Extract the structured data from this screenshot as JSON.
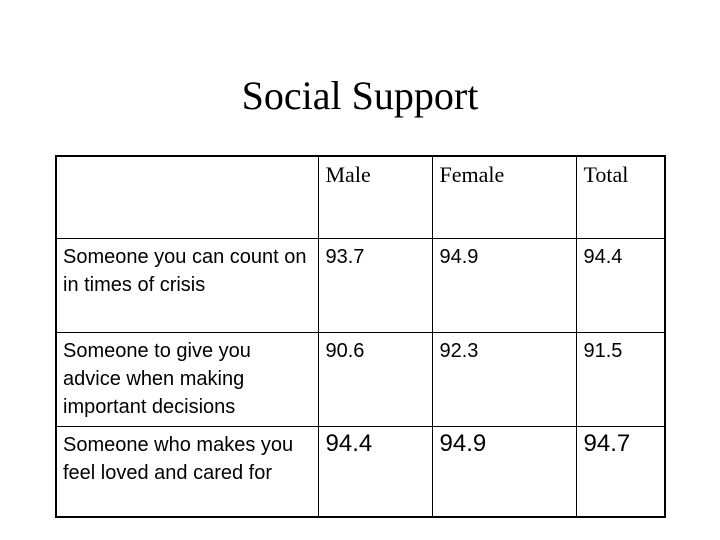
{
  "slide": {
    "title": "Social Support"
  },
  "table": {
    "columns": [
      "",
      "Male",
      "Female",
      "Total"
    ],
    "rows": [
      {
        "label": "Someone you can count on in times of crisis",
        "male": "93.7",
        "female": "94.9",
        "total": "94.4"
      },
      {
        "label": "Someone to give you advice when making important decisions",
        "male": "90.6",
        "female": "92.3",
        "total": "91.5"
      },
      {
        "label": "Someone who makes you feel loved and cared for",
        "male": "94.4",
        "female": "94.9",
        "total": "94.7"
      }
    ]
  }
}
